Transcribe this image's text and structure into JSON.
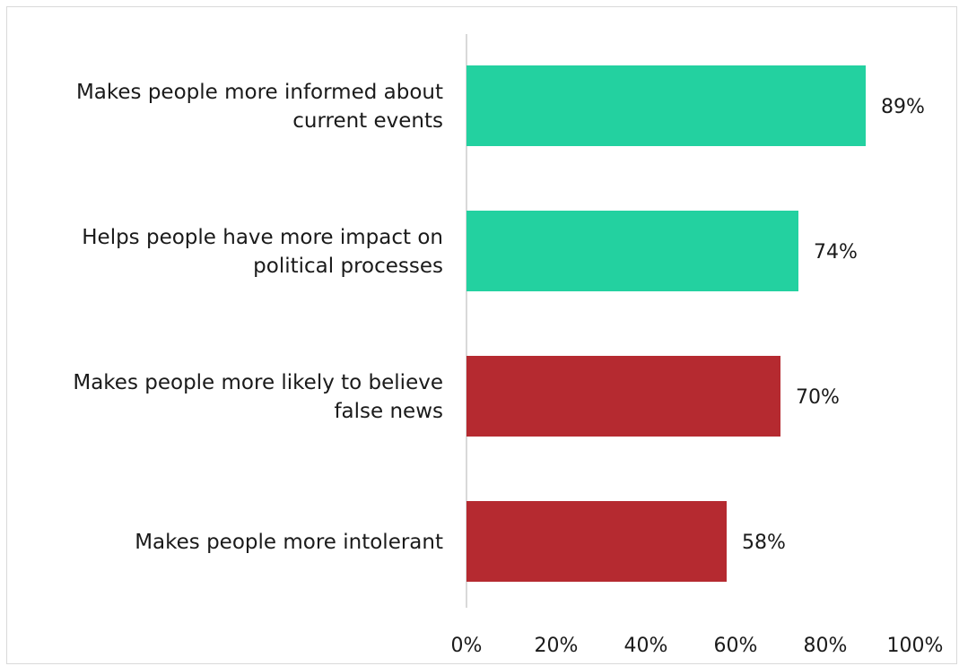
{
  "chart_data": {
    "type": "bar",
    "orientation": "horizontal",
    "categories": [
      [
        "Makes people more informed about",
        "current events"
      ],
      [
        "Helps people have more impact on",
        "political processes"
      ],
      [
        "Makes people more likely to believe",
        "false news"
      ],
      [
        "Makes people more intolerant"
      ]
    ],
    "values": [
      89,
      74,
      70,
      58
    ],
    "value_labels": [
      "89%",
      "74%",
      "70%",
      "58%"
    ],
    "bar_colors": [
      "#23d1a0",
      "#23d1a0",
      "#b52a30",
      "#b52a30"
    ],
    "xlim": [
      0,
      100
    ],
    "x_ticks": [
      0,
      20,
      40,
      60,
      80,
      100
    ],
    "x_tick_labels": [
      "0%",
      "20%",
      "40%",
      "60%",
      "80%",
      "100%"
    ],
    "grid": false,
    "legend": "none",
    "axis_color": "#d9d9d9"
  }
}
